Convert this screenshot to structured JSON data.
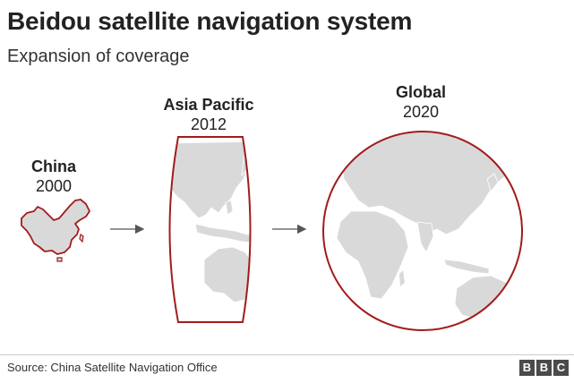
{
  "header": {
    "title": "Beidou satellite navigation system",
    "subtitle": "Expansion of coverage"
  },
  "stages": [
    {
      "name": "China",
      "year": "2000"
    },
    {
      "name": "Asia Pacific",
      "year": "2012"
    },
    {
      "name": "Global",
      "year": "2020"
    }
  ],
  "footer": {
    "source": "Source: China Satellite Navigation Office",
    "logo_letters": [
      "B",
      "B",
      "C"
    ]
  },
  "colors": {
    "coverage_outline": "#a31b1b",
    "land": "#d9d9d9",
    "arrow": "#555555"
  }
}
